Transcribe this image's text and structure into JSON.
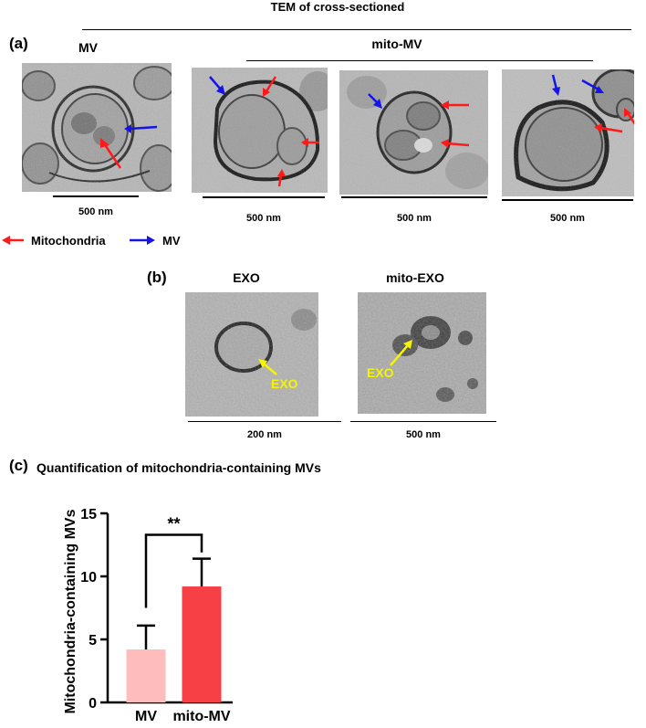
{
  "figure": {
    "header_title": "TEM of cross-sectioned",
    "panel_a": {
      "letter": "(a)",
      "mv_title": "MV",
      "mito_mv_title": "mito-MV",
      "scale_labels": [
        "500 nm",
        "500 nm",
        "500 nm",
        "500 nm"
      ],
      "legend": {
        "mitochondria": "Mitochondria",
        "mv": "MV"
      }
    },
    "panel_b": {
      "letter": "(b)",
      "exo_title": "EXO",
      "mito_exo_title": "mito-EXO",
      "arrow_label_1": "EXO",
      "arrow_label_2": "EXO",
      "scale_labels": [
        "200 nm",
        "500 nm"
      ]
    },
    "panel_c": {
      "letter": "(c)",
      "title": "Quantification of mitochondria-containing MVs",
      "significance": "**"
    },
    "colors": {
      "mitochondria_arrow": "#ff1a1a",
      "mv_arrow": "#1414e6",
      "exo_arrow": "#f5f500",
      "bar_mv": "#ffbcbc",
      "bar_mito_mv": "#f74046"
    }
  },
  "chart_data": {
    "type": "bar",
    "categories": [
      "MV",
      "mito-MV"
    ],
    "values": [
      4.2,
      9.2
    ],
    "error": [
      1.9,
      2.2
    ],
    "ylabel": "Mitochondria-containing MVs",
    "xlabel": "",
    "ylim": [
      0,
      15
    ],
    "yticks": [
      0,
      5,
      10,
      15
    ]
  }
}
